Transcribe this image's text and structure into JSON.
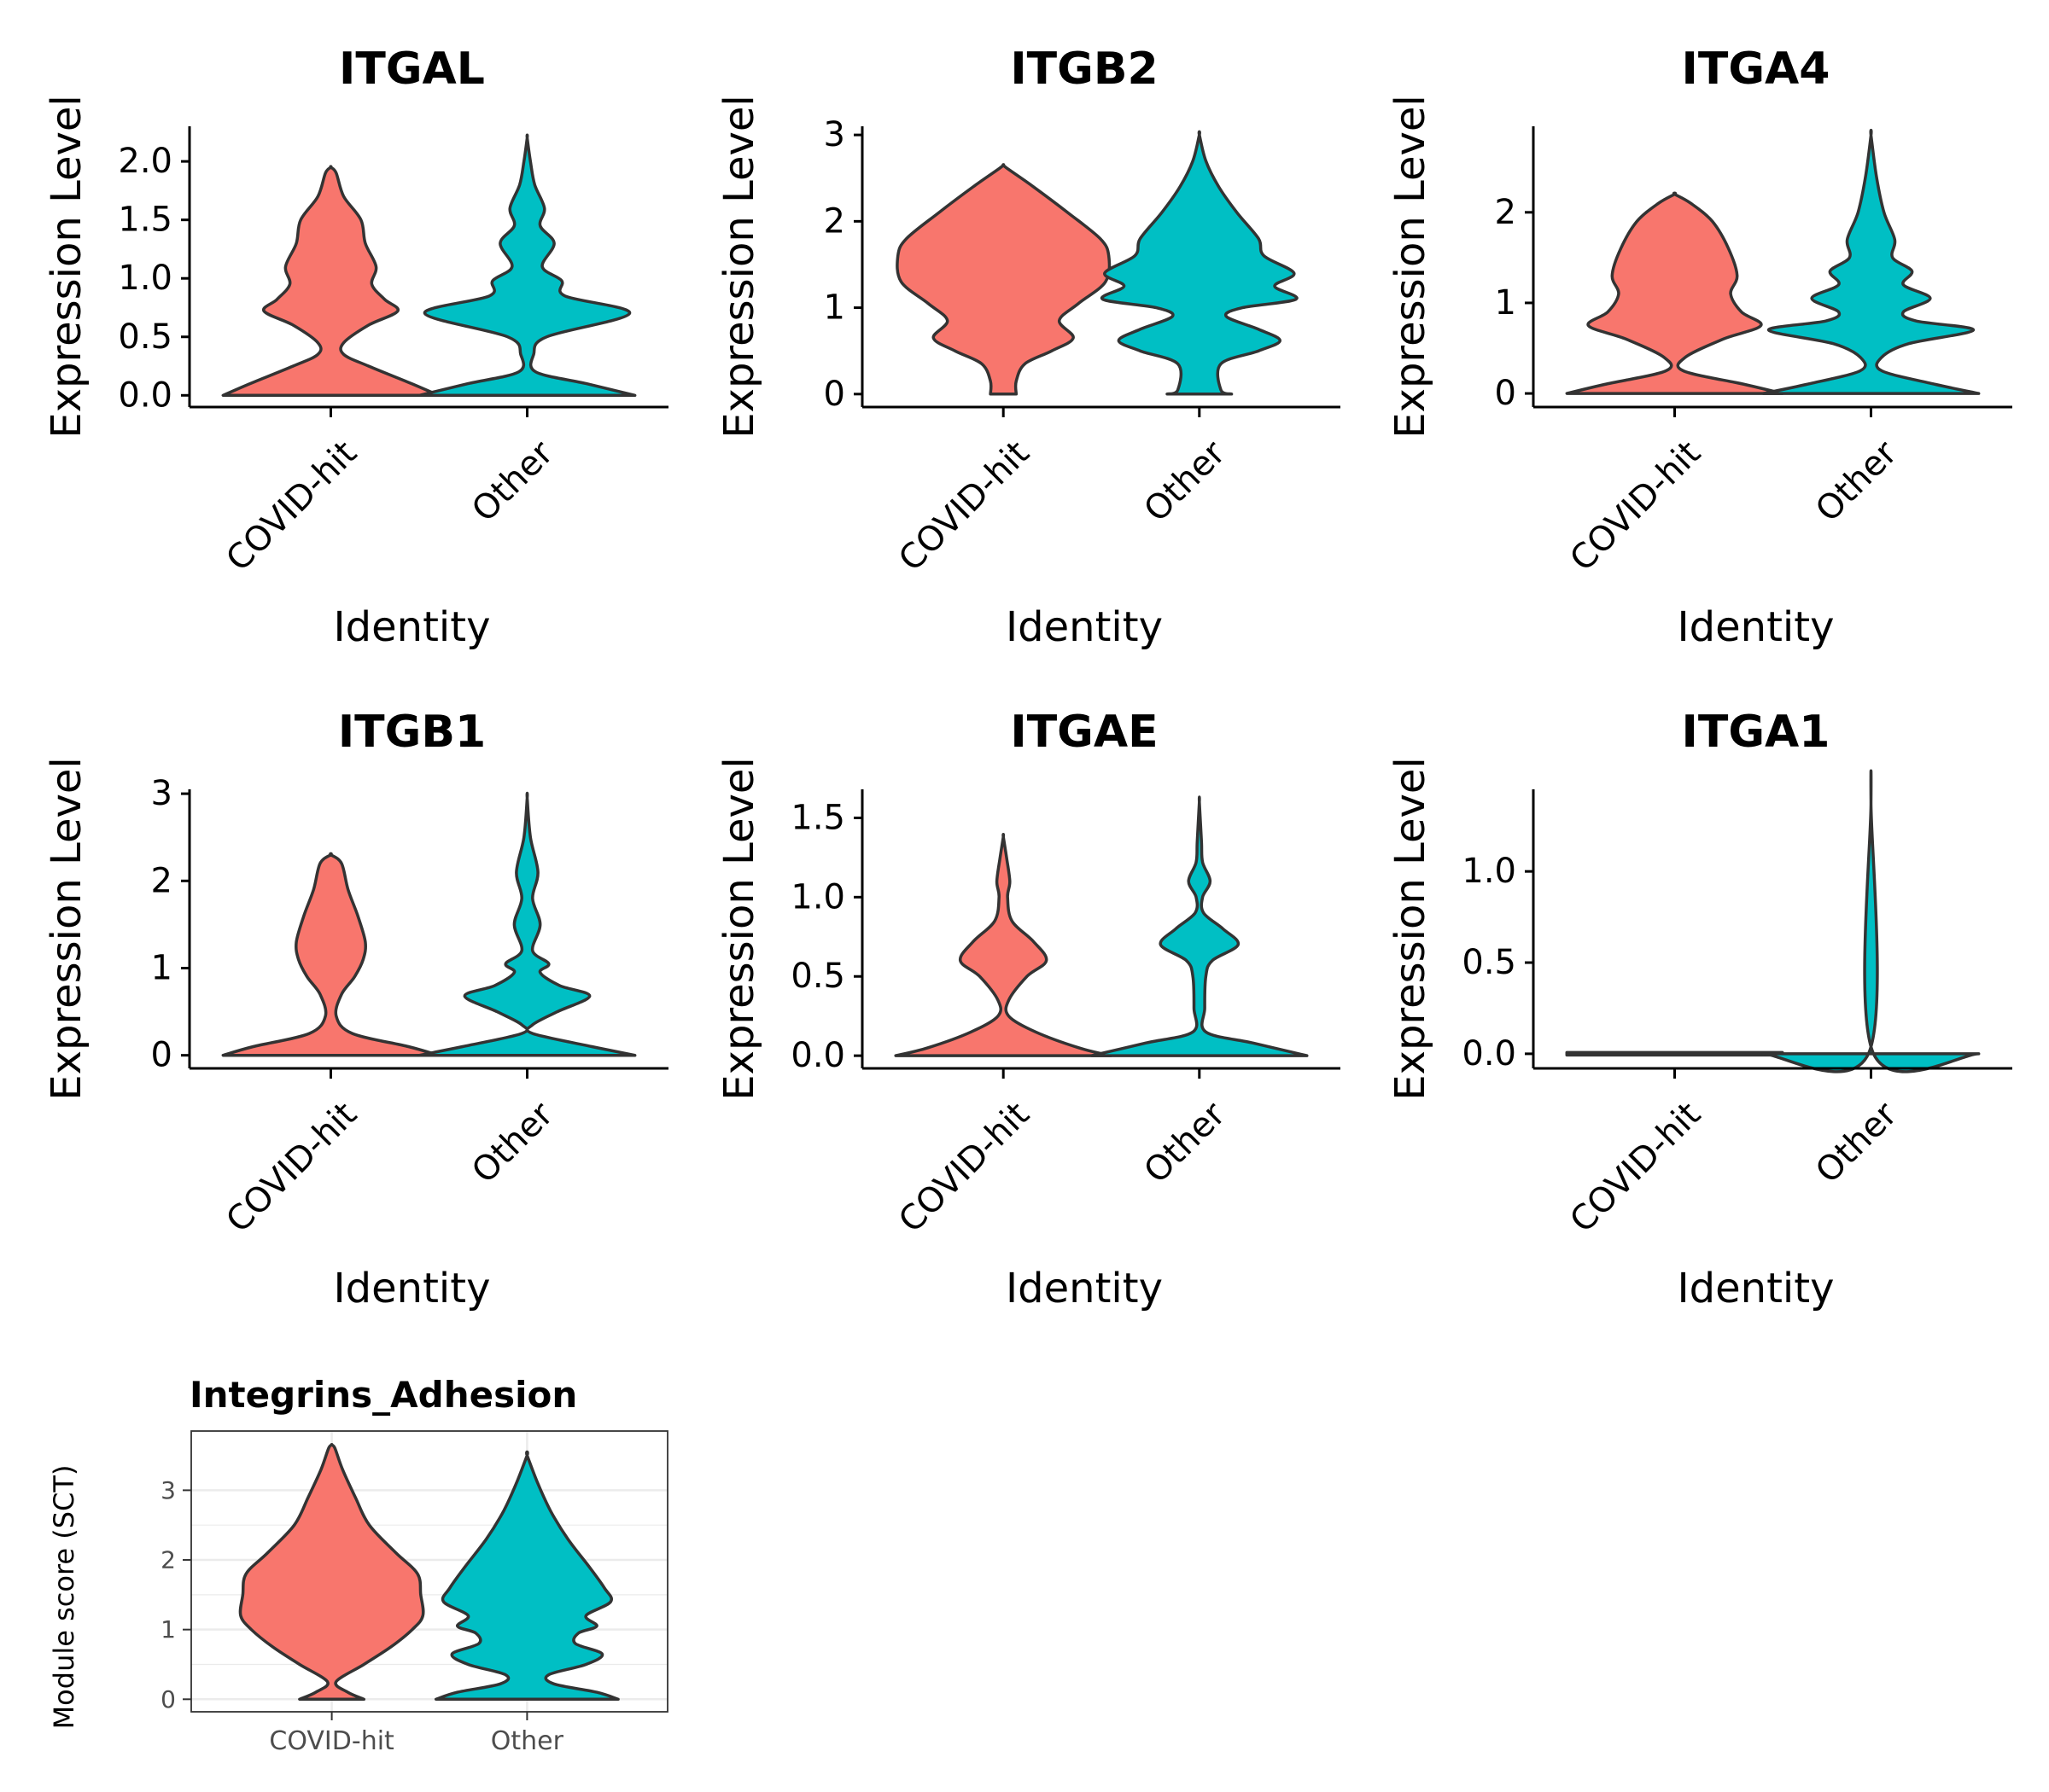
{
  "colors": {
    "group_a": "#F8766D",
    "group_b": "#00BFC4",
    "outline": "#333333",
    "axis": "#000000",
    "grid": "#EBEBEB",
    "panel_border": "#333333",
    "minor_text": "#4D4D4D"
  },
  "chart_data": [
    {
      "type": "violin",
      "style": "classic",
      "title": "ITGAL",
      "xlabel": "Identity",
      "ylabel": "Expression Level",
      "categories": [
        "COVID-hit",
        "Other"
      ],
      "ylim": [
        -0.1,
        2.3
      ],
      "yticks": [
        "0.0",
        "0.5",
        "1.0",
        "1.5",
        "2.0"
      ],
      "series": [
        {
          "category": "COVID-hit",
          "max": 1.95,
          "profile": [
            [
              0,
              1.0
            ],
            [
              0.1,
              0.75
            ],
            [
              0.25,
              0.35
            ],
            [
              0.35,
              0.12
            ],
            [
              0.45,
              0.12
            ],
            [
              0.6,
              0.35
            ],
            [
              0.72,
              0.62
            ],
            [
              0.82,
              0.5
            ],
            [
              0.95,
              0.38
            ],
            [
              1.1,
              0.42
            ],
            [
              1.3,
              0.32
            ],
            [
              1.5,
              0.28
            ],
            [
              1.7,
              0.12
            ],
            [
              1.9,
              0.05
            ],
            [
              1.95,
              0.0
            ]
          ]
        },
        {
          "category": "Other",
          "max": 2.2,
          "profile": [
            [
              0,
              1.0
            ],
            [
              0.1,
              0.55
            ],
            [
              0.2,
              0.08
            ],
            [
              0.35,
              0.06
            ],
            [
              0.5,
              0.18
            ],
            [
              0.7,
              0.95
            ],
            [
              0.85,
              0.35
            ],
            [
              0.98,
              0.32
            ],
            [
              1.1,
              0.14
            ],
            [
              1.3,
              0.25
            ],
            [
              1.45,
              0.12
            ],
            [
              1.6,
              0.16
            ],
            [
              1.8,
              0.07
            ],
            [
              2.0,
              0.03
            ],
            [
              2.2,
              0.0
            ]
          ]
        }
      ]
    },
    {
      "type": "violin",
      "style": "classic",
      "title": "ITGB2",
      "xlabel": "Identity",
      "ylabel": "Expression Level",
      "categories": [
        "COVID-hit",
        "Other"
      ],
      "ylim": [
        -0.15,
        3.1
      ],
      "yticks": [
        "0",
        "1",
        "2",
        "3"
      ],
      "series": [
        {
          "category": "COVID-hit",
          "max": 2.65,
          "profile": [
            [
              0,
              0.12
            ],
            [
              0.15,
              0.12
            ],
            [
              0.35,
              0.2
            ],
            [
              0.5,
              0.45
            ],
            [
              0.65,
              0.65
            ],
            [
              0.85,
              0.52
            ],
            [
              1.05,
              0.7
            ],
            [
              1.3,
              0.95
            ],
            [
              1.6,
              0.98
            ],
            [
              1.8,
              0.9
            ],
            [
              2.1,
              0.6
            ],
            [
              2.4,
              0.28
            ],
            [
              2.6,
              0.05
            ],
            [
              2.65,
              0.0
            ]
          ]
        },
        {
          "category": "Other",
          "max": 3.0,
          "profile": [
            [
              0,
              0.3
            ],
            [
              0.05,
              0.2
            ],
            [
              0.35,
              0.2
            ],
            [
              0.5,
              0.55
            ],
            [
              0.62,
              0.75
            ],
            [
              0.75,
              0.55
            ],
            [
              0.9,
              0.25
            ],
            [
              1.0,
              0.4
            ],
            [
              1.1,
              0.9
            ],
            [
              1.25,
              0.7
            ],
            [
              1.4,
              0.88
            ],
            [
              1.6,
              0.6
            ],
            [
              1.8,
              0.55
            ],
            [
              2.1,
              0.35
            ],
            [
              2.4,
              0.18
            ],
            [
              2.7,
              0.06
            ],
            [
              3.0,
              0.0
            ]
          ]
        }
      ]
    },
    {
      "type": "violin",
      "style": "classic",
      "title": "ITGA4",
      "xlabel": "Identity",
      "ylabel": "Expression Level",
      "categories": [
        "COVID-hit",
        "Other"
      ],
      "ylim": [
        -0.15,
        2.95
      ],
      "yticks": [
        "0",
        "1",
        "2"
      ],
      "series": [
        {
          "category": "COVID-hit",
          "max": 2.2,
          "profile": [
            [
              0,
              1.0
            ],
            [
              0.1,
              0.65
            ],
            [
              0.25,
              0.08
            ],
            [
              0.4,
              0.1
            ],
            [
              0.6,
              0.45
            ],
            [
              0.75,
              0.8
            ],
            [
              0.9,
              0.62
            ],
            [
              1.1,
              0.52
            ],
            [
              1.3,
              0.58
            ],
            [
              1.6,
              0.5
            ],
            [
              1.9,
              0.35
            ],
            [
              2.1,
              0.15
            ],
            [
              2.2,
              0.0
            ]
          ]
        },
        {
          "category": "Other",
          "max": 2.85,
          "profile": [
            [
              0,
              1.0
            ],
            [
              0.1,
              0.6
            ],
            [
              0.25,
              0.1
            ],
            [
              0.4,
              0.1
            ],
            [
              0.55,
              0.35
            ],
            [
              0.7,
              0.95
            ],
            [
              0.8,
              0.42
            ],
            [
              0.9,
              0.3
            ],
            [
              1.05,
              0.55
            ],
            [
              1.2,
              0.3
            ],
            [
              1.35,
              0.38
            ],
            [
              1.5,
              0.2
            ],
            [
              1.7,
              0.22
            ],
            [
              2.0,
              0.12
            ],
            [
              2.4,
              0.05
            ],
            [
              2.85,
              0.0
            ]
          ]
        }
      ]
    },
    {
      "type": "violin",
      "style": "classic",
      "title": "ITGB1",
      "xlabel": "Identity",
      "ylabel": "Expression Level",
      "categories": [
        "COVID-hit",
        "Other"
      ],
      "ylim": [
        -0.15,
        3.05
      ],
      "yticks": [
        "0",
        "1",
        "2",
        "3"
      ],
      "series": [
        {
          "category": "COVID-hit",
          "max": 2.3,
          "profile": [
            [
              0,
              1.0
            ],
            [
              0.1,
              0.72
            ],
            [
              0.25,
              0.2
            ],
            [
              0.45,
              0.05
            ],
            [
              0.7,
              0.1
            ],
            [
              0.9,
              0.22
            ],
            [
              1.1,
              0.3
            ],
            [
              1.3,
              0.32
            ],
            [
              1.6,
              0.25
            ],
            [
              1.9,
              0.16
            ],
            [
              2.2,
              0.1
            ],
            [
              2.3,
              0.0
            ]
          ]
        },
        {
          "category": "Other",
          "max": 2.95,
          "profile": [
            [
              0,
              1.0
            ],
            [
              0.1,
              0.6
            ],
            [
              0.25,
              0.05
            ],
            [
              0.35,
              0.05
            ],
            [
              0.5,
              0.28
            ],
            [
              0.68,
              0.58
            ],
            [
              0.8,
              0.3
            ],
            [
              0.95,
              0.12
            ],
            [
              1.05,
              0.2
            ],
            [
              1.2,
              0.05
            ],
            [
              1.5,
              0.12
            ],
            [
              1.8,
              0.05
            ],
            [
              2.1,
              0.1
            ],
            [
              2.5,
              0.03
            ],
            [
              2.95,
              0.0
            ]
          ]
        }
      ]
    },
    {
      "type": "violin",
      "style": "classic",
      "title": "ITGAE",
      "xlabel": "Identity",
      "ylabel": "Expression Level",
      "categories": [
        "COVID-hit",
        "Other"
      ],
      "ylim": [
        -0.08,
        1.68
      ],
      "yticks": [
        "0.0",
        "0.5",
        "1.0",
        "1.5"
      ],
      "series": [
        {
          "category": "COVID-hit",
          "max": 1.38,
          "profile": [
            [
              0,
              1.0
            ],
            [
              0.05,
              0.7
            ],
            [
              0.15,
              0.3
            ],
            [
              0.25,
              0.05
            ],
            [
              0.35,
              0.05
            ],
            [
              0.5,
              0.22
            ],
            [
              0.6,
              0.4
            ],
            [
              0.72,
              0.28
            ],
            [
              0.85,
              0.08
            ],
            [
              1.0,
              0.04
            ],
            [
              1.1,
              0.06
            ],
            [
              1.25,
              0.03
            ],
            [
              1.38,
              0.0
            ]
          ]
        },
        {
          "category": "Other",
          "max": 1.6,
          "profile": [
            [
              0,
              1.0
            ],
            [
              0.08,
              0.5
            ],
            [
              0.15,
              0.06
            ],
            [
              0.3,
              0.05
            ],
            [
              0.5,
              0.06
            ],
            [
              0.6,
              0.12
            ],
            [
              0.7,
              0.36
            ],
            [
              0.8,
              0.22
            ],
            [
              0.9,
              0.04
            ],
            [
              1.0,
              0.03
            ],
            [
              1.1,
              0.1
            ],
            [
              1.22,
              0.03
            ],
            [
              1.35,
              0.02
            ],
            [
              1.6,
              0.0
            ]
          ]
        }
      ]
    },
    {
      "type": "violin",
      "style": "classic",
      "title": "ITGA1",
      "xlabel": "Identity",
      "ylabel": "Expression Level",
      "categories": [
        "COVID-hit",
        "Other"
      ],
      "ylim": [
        -0.08,
        1.45
      ],
      "yticks": [
        "0.0",
        "0.5",
        "1.0"
      ],
      "series": [
        {
          "category": "COVID-hit",
          "max": 0.0,
          "profile": [
            [
              0,
              1.0
            ]
          ]
        },
        {
          "category": "Other",
          "max": 1.38,
          "profile": [
            [
              0,
              1.0
            ],
            [
              0.005,
              0.02
            ],
            [
              1.38,
              0.0
            ]
          ]
        }
      ]
    },
    {
      "type": "violin",
      "style": "gridded",
      "title": "Integrins_Adhesion",
      "xlabel": "",
      "ylabel": "Module score (SCT)",
      "categories": [
        "COVID-hit",
        "Other"
      ],
      "ylim": [
        -0.18,
        3.85
      ],
      "yticks": [
        "0",
        "1",
        "2",
        "3"
      ],
      "series": [
        {
          "category": "COVID-hit",
          "max": 3.65,
          "profile": [
            [
              0,
              0.3
            ],
            [
              0.1,
              0.15
            ],
            [
              0.25,
              0.04
            ],
            [
              0.5,
              0.3
            ],
            [
              0.75,
              0.55
            ],
            [
              1.0,
              0.75
            ],
            [
              1.2,
              0.85
            ],
            [
              1.5,
              0.83
            ],
            [
              1.8,
              0.8
            ],
            [
              2.1,
              0.6
            ],
            [
              2.5,
              0.35
            ],
            [
              2.9,
              0.22
            ],
            [
              3.3,
              0.1
            ],
            [
              3.6,
              0.03
            ],
            [
              3.65,
              0.0
            ]
          ]
        },
        {
          "category": "Other",
          "max": 3.5,
          "profile": [
            [
              0,
              0.85
            ],
            [
              0.1,
              0.65
            ],
            [
              0.22,
              0.25
            ],
            [
              0.35,
              0.2
            ],
            [
              0.5,
              0.55
            ],
            [
              0.65,
              0.7
            ],
            [
              0.8,
              0.45
            ],
            [
              0.95,
              0.48
            ],
            [
              1.05,
              0.65
            ],
            [
              1.2,
              0.55
            ],
            [
              1.4,
              0.78
            ],
            [
              1.6,
              0.72
            ],
            [
              1.9,
              0.58
            ],
            [
              2.3,
              0.38
            ],
            [
              2.7,
              0.22
            ],
            [
              3.1,
              0.1
            ],
            [
              3.5,
              0.0
            ]
          ]
        }
      ]
    }
  ]
}
